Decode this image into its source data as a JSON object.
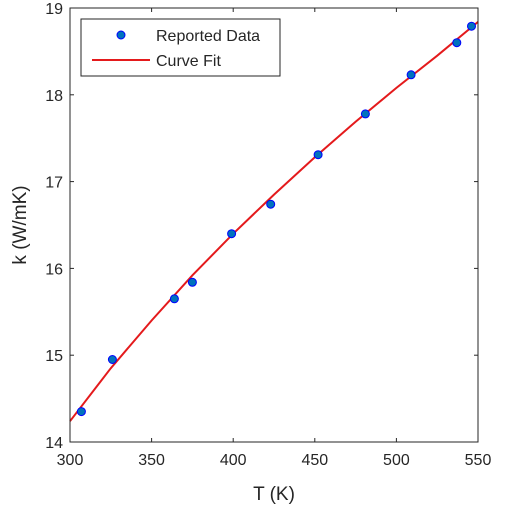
{
  "chart_data": {
    "type": "scatter",
    "xlabel": "T (K)",
    "ylabel": "k (W/mK)",
    "xlim": [
      300,
      550
    ],
    "ylim": [
      14,
      19
    ],
    "xticks": [
      300,
      350,
      400,
      450,
      500,
      550
    ],
    "yticks": [
      14,
      15,
      16,
      17,
      18,
      19
    ],
    "grid": false,
    "legend_position": "top-left",
    "series": [
      {
        "name": "Reported Data",
        "kind": "markers",
        "color": "#0072bd",
        "x": [
          307,
          326,
          364,
          375,
          399,
          423,
          452,
          481,
          509,
          537,
          546
        ],
        "y": [
          14.35,
          14.95,
          15.65,
          15.84,
          16.4,
          16.74,
          17.31,
          17.78,
          18.23,
          18.6,
          18.79
        ]
      },
      {
        "name": "Curve Fit",
        "kind": "line",
        "color": "#e41a1c",
        "x": [
          300,
          325,
          350,
          375,
          400,
          425,
          450,
          475,
          500,
          525,
          550
        ],
        "y": [
          14.24,
          14.85,
          15.4,
          15.92,
          16.4,
          16.85,
          17.28,
          17.69,
          18.08,
          18.45,
          18.84
        ]
      }
    ]
  }
}
